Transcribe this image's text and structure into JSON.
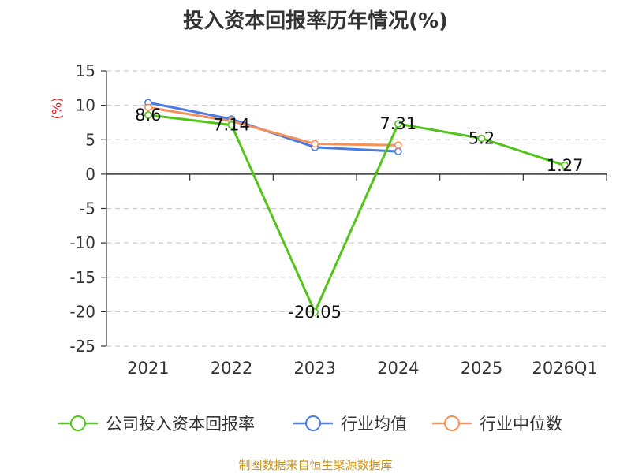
{
  "chart_data": {
    "type": "line",
    "title": "投入资本回报率历年情况(%)",
    "ylabel": "(%)",
    "categories": [
      "2021",
      "2022",
      "2023",
      "2024",
      "2025",
      "2026Q1"
    ],
    "ylim": [
      -25,
      15
    ],
    "yticks": [
      15,
      10,
      5,
      0,
      -5,
      -10,
      -15,
      -20,
      -25
    ],
    "grid": true,
    "legend_position": "bottom",
    "series": [
      {
        "name": "公司投入资本回报率",
        "color": "#52c41a",
        "values": [
          8.6,
          7.14,
          -20.05,
          7.31,
          5.2,
          1.27
        ],
        "labels": [
          "8.6",
          "7.14",
          "-20.05",
          "7.31",
          "5.2",
          "1.27"
        ]
      },
      {
        "name": "行业均值",
        "color": "#4a7be0",
        "values": [
          10.4,
          8.0,
          3.9,
          3.3,
          null,
          null
        ]
      },
      {
        "name": "行业中位数",
        "color": "#f4905a",
        "values": [
          9.7,
          7.7,
          4.4,
          4.2,
          null,
          null
        ]
      }
    ]
  },
  "source_text": "制图数据来自恒生聚源数据库"
}
